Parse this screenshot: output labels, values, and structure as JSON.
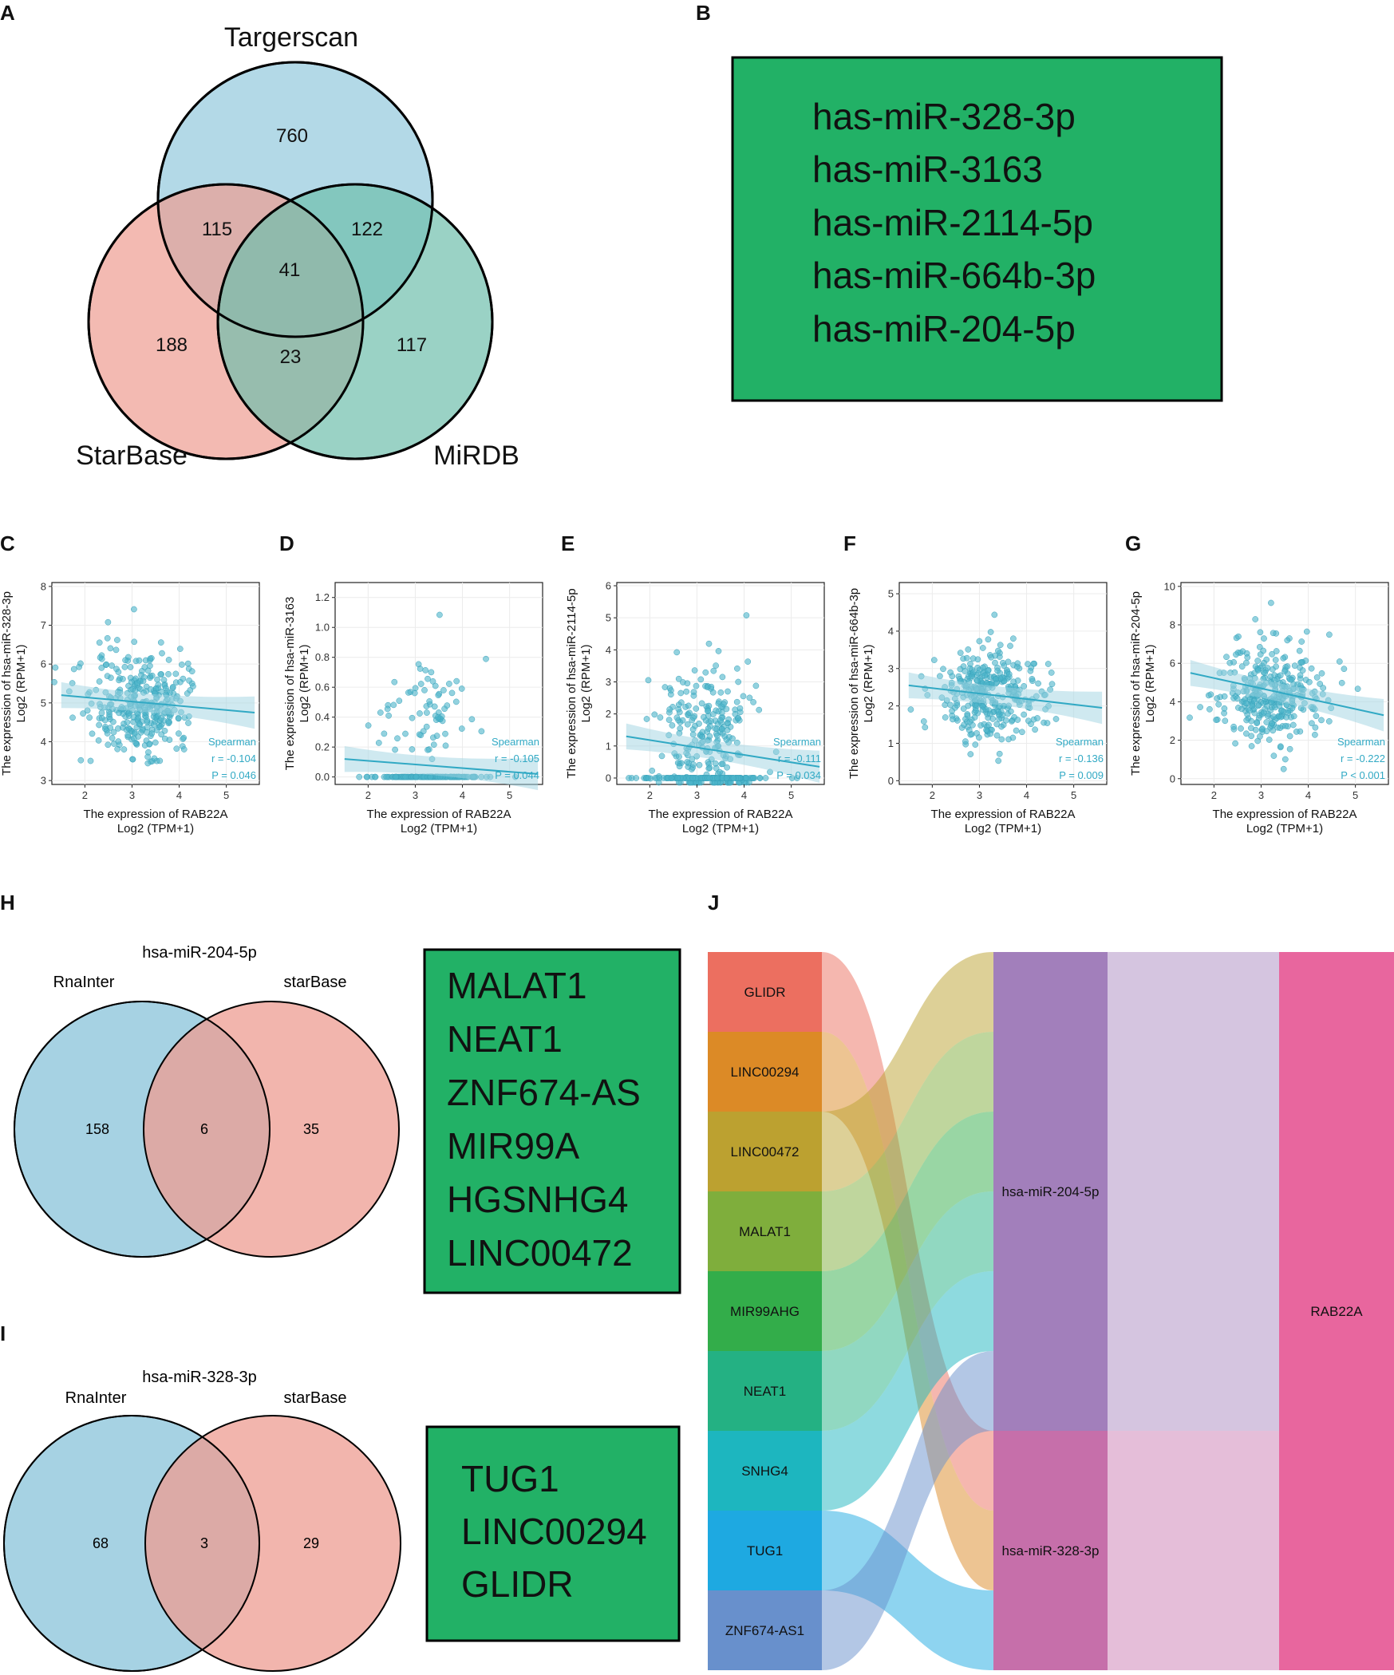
{
  "panel_labels": {
    "A": "A",
    "B": "B",
    "C": "C",
    "D": "D",
    "E": "E",
    "F": "F",
    "G": "G",
    "H": "H",
    "I": "I",
    "J": "J"
  },
  "colors": {
    "venn_blue": "#a6d2e3",
    "venn_red": "#ee9c92",
    "venn_teal": "#7cc7b6",
    "green_box": "#22b166",
    "scatter": "#4bb4c9",
    "line": "#31a9c4",
    "band": "#b7dde8"
  },
  "panel_A": {
    "set_labels": [
      "Targerscan",
      "StarBase",
      "MiRDB"
    ],
    "regions": {
      "targetscan_only": "760",
      "starbase_only": "188",
      "mirdb_only": "117",
      "t_s": "115",
      "t_m": "122",
      "s_m": "23",
      "all": "41"
    }
  },
  "panel_B": {
    "items": [
      "has-miR-328-3p",
      "has-miR-3163",
      "has-miR-2114-5p",
      "has-miR-664b-3p",
      "has-miR-204-5p"
    ]
  },
  "chart_data": [
    {
      "type": "scatter",
      "panel": "C",
      "title": "",
      "ylabel_line1": "The expression of hsa-miR-328-3p",
      "ylabel_line2": "Log2 (RPM+1)",
      "xlabel_line1": "The expression of RAB22A",
      "xlabel_line2": "Log2 (TPM+1)",
      "xlim": [
        1.3,
        5.7
      ],
      "ylim": [
        2.9,
        8.1
      ],
      "xticks": [
        2,
        3,
        4,
        5
      ],
      "yticks": [
        3,
        4,
        5,
        6,
        7,
        8
      ],
      "fit": [
        [
          1.5,
          5.2
        ],
        [
          5.6,
          4.75
        ]
      ],
      "stats": {
        "method": "Spearman",
        "r": "r = -0.104",
        "p": "P = 0.046"
      },
      "center": [
        3.2,
        5.0
      ],
      "spread": [
        0.6,
        0.75
      ],
      "n": 330
    },
    {
      "type": "scatter",
      "panel": "D",
      "title": "",
      "ylabel_line1": "The expression of hsa-miR-3163",
      "ylabel_line2": "Log2 (RPM+1)",
      "xlabel_line1": "The expression of RAB22A",
      "xlabel_line2": "Log2 (TPM+1)",
      "xlim": [
        1.3,
        5.7
      ],
      "ylim": [
        -0.05,
        1.3
      ],
      "xticks": [
        2,
        3,
        4,
        5
      ],
      "yticks": [
        0.0,
        0.2,
        0.4,
        0.6,
        0.8,
        1.0,
        1.2
      ],
      "fit": [
        [
          1.5,
          0.12
        ],
        [
          5.6,
          0.02
        ]
      ],
      "stats": {
        "method": "Spearman",
        "r": "r = -0.105",
        "p": "P = 0.044"
      },
      "center": [
        3.2,
        0.45
      ],
      "spread": [
        0.45,
        0.18
      ],
      "n": 70
    },
    {
      "type": "scatter",
      "panel": "E",
      "title": "",
      "ylabel_line1": "The expression of hsa-miR-2114-5p",
      "ylabel_line2": "Log2 (RPM+1)",
      "xlabel_line1": "The expression of RAB22A",
      "xlabel_line2": "Log2 (TPM+1)",
      "xlim": [
        1.3,
        5.7
      ],
      "ylim": [
        -0.2,
        6.1
      ],
      "xticks": [
        2,
        3,
        4,
        5
      ],
      "yticks": [
        0,
        1,
        2,
        3,
        4,
        5,
        6
      ],
      "fit": [
        [
          1.5,
          1.3
        ],
        [
          5.6,
          0.35
        ]
      ],
      "stats": {
        "method": "Spearman",
        "r": "r = -0.111",
        "p": "P = 0.034"
      },
      "center": [
        3.2,
        1.3
      ],
      "spread": [
        0.55,
        1.2
      ],
      "n": 250
    },
    {
      "type": "scatter",
      "panel": "F",
      "title": "",
      "ylabel_line1": "The expression of hsa-miR-664b-3p",
      "ylabel_line2": "Log2 (RPM+1)",
      "xlabel_line1": "The expression of RAB22A",
      "xlabel_line2": "Log2 (TPM+1)",
      "xlim": [
        1.3,
        5.7
      ],
      "ylim": [
        -0.1,
        5.3
      ],
      "xticks": [
        2,
        3,
        4,
        5
      ],
      "yticks": [
        0,
        1,
        2,
        3,
        4,
        5
      ],
      "fit": [
        [
          1.5,
          2.55
        ],
        [
          5.6,
          1.95
        ]
      ],
      "stats": {
        "method": "Spearman",
        "r": "r = -0.136",
        "p": "P = 0.009"
      },
      "center": [
        3.2,
        2.3
      ],
      "spread": [
        0.55,
        0.6
      ],
      "n": 330
    },
    {
      "type": "scatter",
      "panel": "G",
      "title": "",
      "ylabel_line1": "The expression of hsa-miR-204-5p",
      "ylabel_line2": "Log2 (RPM+1)",
      "xlabel_line1": "The expression of RAB22A",
      "xlabel_line2": "Log2 (TPM+1)",
      "xlim": [
        1.3,
        5.7
      ],
      "ylim": [
        -0.3,
        10.2
      ],
      "xticks": [
        2,
        3,
        4,
        5
      ],
      "yticks": [
        0,
        2,
        4,
        6,
        8,
        10
      ],
      "fit": [
        [
          1.5,
          5.5
        ],
        [
          5.6,
          3.3
        ]
      ],
      "stats": {
        "method": "Spearman",
        "r": "r = -0.222",
        "p": "P < 0.001"
      },
      "center": [
        3.2,
        4.3
      ],
      "spread": [
        0.55,
        1.3
      ],
      "n": 330
    },
    {
      "type": "sankey",
      "panel": "J",
      "lncrnas": [
        {
          "name": "GLIDR",
          "color": "#ec6f60",
          "target": "hsa-miR-328-3p"
        },
        {
          "name": "LINC00294",
          "color": "#dc8a26",
          "target": "hsa-miR-328-3p"
        },
        {
          "name": "LINC00472",
          "color": "#bca130",
          "target": "hsa-miR-204-5p"
        },
        {
          "name": "MALAT1",
          "color": "#7fae3c",
          "target": "hsa-miR-204-5p"
        },
        {
          "name": "MIR99AHG",
          "color": "#33ad4a",
          "target": "hsa-miR-204-5p"
        },
        {
          "name": "NEAT1",
          "color": "#24b183",
          "target": "hsa-miR-204-5p"
        },
        {
          "name": "SNHG4",
          "color": "#1db6bf",
          "target": "hsa-miR-204-5p"
        },
        {
          "name": "TUG1",
          "color": "#1ea9e1",
          "target": "hsa-miR-328-3p"
        },
        {
          "name": "ZNF674-AS1",
          "color": "#6890cc",
          "target": "hsa-miR-204-5p"
        }
      ],
      "mirnas": [
        {
          "name": "hsa-miR-204-5p",
          "color": "#a27fbb"
        },
        {
          "name": "hsa-miR-328-3p",
          "color": "#c66faa"
        }
      ],
      "target": {
        "name": "RAB22A",
        "color": "#e8669e"
      }
    }
  ],
  "panel_H": {
    "title": "hsa-miR-204-5p",
    "left_label": "RnaInter",
    "right_label": "starBase",
    "left_only": "158",
    "overlap": "6",
    "right_only": "35",
    "list": [
      "MALAT1",
      "NEAT1",
      "ZNF674-AS",
      "MIR99A",
      "HGSNHG4",
      "LINC00472"
    ]
  },
  "panel_I": {
    "title": "hsa-miR-328-3p",
    "left_label": "RnaInter",
    "right_label": "starBase",
    "left_only": "68",
    "overlap": "3",
    "right_only": "29",
    "list": [
      "TUG1",
      "LINC00294",
      "GLIDR"
    ]
  }
}
